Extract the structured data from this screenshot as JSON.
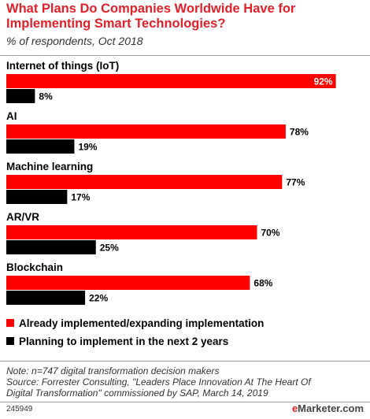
{
  "header": {
    "title": "What Plans Do Companies Worldwide Have for Implementing Smart Technologies?",
    "subtitle": "% of respondents, Oct 2018"
  },
  "colors": {
    "implemented": "#ff0000",
    "planning": "#000000",
    "title": "#e3202a"
  },
  "chart_data": {
    "type": "bar",
    "orientation": "horizontal",
    "categories": [
      "Internet of things (IoT)",
      "AI",
      "Machine learning",
      "AR/VR",
      "Blockchain"
    ],
    "series": [
      {
        "name": "Already implemented/expanding implementation",
        "values": [
          92,
          78,
          77,
          70,
          68
        ],
        "color": "#ff0000"
      },
      {
        "name": "Planning to implement in the next 2 years",
        "values": [
          8,
          19,
          17,
          25,
          22
        ],
        "color": "#000000"
      }
    ],
    "value_suffix": "%",
    "xlim": [
      0,
      100
    ],
    "grid": false,
    "legend": "bottom"
  },
  "footer": {
    "note_lines": [
      "Note: n=747 digital transformation decision makers",
      "Source: Forrester Consulting, \"Leaders Place Innovation At The Heart Of",
      "Digital Transformation\" commissioned by SAP, March 14, 2019"
    ],
    "chart_id": "245949",
    "brand_prefix": "e",
    "brand_rest": "Marketer",
    "brand_domain": ".com"
  }
}
